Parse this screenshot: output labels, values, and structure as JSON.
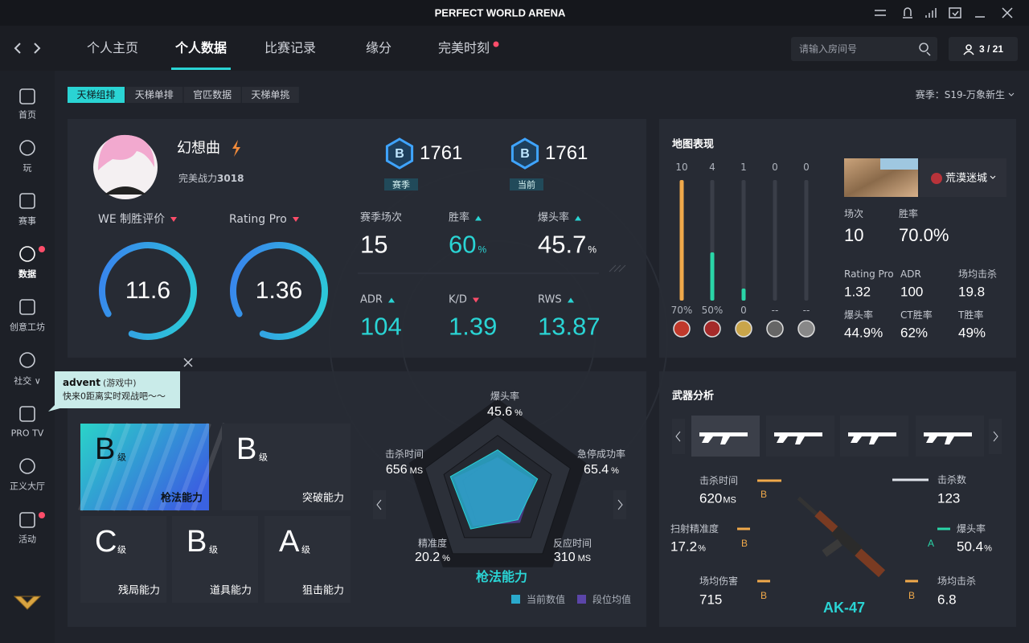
{
  "window": {
    "title": "PERFECT WORLD ARENA"
  },
  "nav": {
    "tabs": [
      "个人主页",
      "个人数据",
      "比赛记录",
      "缘分",
      "完美时刻"
    ],
    "active": 1,
    "dot_tab": 4,
    "search_placeholder": "请输入房间号",
    "party": "3 / 21"
  },
  "sidebar": {
    "items": [
      "首页",
      "玩",
      "赛事",
      "数据",
      "创意工坊",
      "社交 ∨",
      "PRO TV",
      "正义大厅",
      "活动"
    ],
    "active": 3,
    "dots": [
      3,
      8
    ]
  },
  "subtabs": {
    "items": [
      "天梯组排",
      "天梯单排",
      "官匹数据",
      "天梯单挑"
    ],
    "active": 0,
    "season": "赛季：S19-万象新生"
  },
  "profile": {
    "name": "幻想曲",
    "power_label": "完美战力",
    "power": 3018,
    "ranks": [
      {
        "tier": "B",
        "score": 1761,
        "label": "赛季"
      },
      {
        "tier": "B",
        "score": 1761,
        "label": "当前"
      }
    ],
    "gauges": [
      {
        "label": "WE 制胜评价",
        "value": 11.6
      },
      {
        "label": "Rating Pro",
        "value": 1.36
      }
    ],
    "stats": [
      {
        "label": "赛季场次",
        "value": 15,
        "trend": "none",
        "highlight": false
      },
      {
        "label": "胜率",
        "value": 60,
        "unit": "%",
        "trend": "up",
        "highlight": true
      },
      {
        "label": "爆头率",
        "value": 45.7,
        "unit": "%",
        "trend": "up",
        "highlight": false
      },
      {
        "label": "ADR",
        "value": 104,
        "trend": "up",
        "highlight": true
      },
      {
        "label": "K/D",
        "value": 1.39,
        "trend": "down",
        "highlight": true
      },
      {
        "label": "RWS",
        "value": 13.87,
        "trend": "up",
        "highlight": true
      }
    ]
  },
  "map": {
    "title": "地图表现",
    "bars": [
      {
        "games": 10,
        "rate": "70%",
        "color": "#f0a94a"
      },
      {
        "games": 4,
        "rate": "50%",
        "color": "#2ad6a8"
      },
      {
        "games": 1,
        "rate": "0",
        "color": "#2ad6a8"
      },
      {
        "games": 0,
        "rate": "--",
        "color": "#2ad6a8"
      },
      {
        "games": 0,
        "rate": "--",
        "color": "#2ad6a8"
      }
    ],
    "selected": "荒漠迷城",
    "stats": [
      {
        "label": "场次",
        "value": "10"
      },
      {
        "label": "胜率",
        "value": "70.0%"
      },
      {
        "label": "Rating Pro",
        "value": "1.32"
      },
      {
        "label": "ADR",
        "value": "100"
      },
      {
        "label": "场均击杀",
        "value": "19.8"
      },
      {
        "label": "爆头率",
        "value": "44.9%"
      },
      {
        "label": "CT胜率",
        "value": "62%"
      },
      {
        "label": "T胜率",
        "value": "49%"
      }
    ]
  },
  "toast": {
    "name": "advent",
    "status": "(游戏中)",
    "message": "快来0距离实时观战吧～～"
  },
  "abilities": [
    {
      "grade": "B",
      "suffix": "级",
      "label": "枪法能力"
    },
    {
      "grade": "B",
      "suffix": "级",
      "label": "突破能力"
    },
    {
      "grade": "C",
      "suffix": "级",
      "label": "残局能力"
    },
    {
      "grade": "B",
      "suffix": "级",
      "label": "道具能力"
    },
    {
      "grade": "A",
      "suffix": "级",
      "label": "狙击能力"
    }
  ],
  "radar": {
    "title": "枪法能力",
    "axes": [
      {
        "label": "爆头率",
        "value": 45.6,
        "unit": "%"
      },
      {
        "label": "急停成功率",
        "value": 65.4,
        "unit": "%"
      },
      {
        "label": "反应时间",
        "value": 310,
        "unit": "MS"
      },
      {
        "label": "精准度",
        "value": 20.2,
        "unit": "%"
      },
      {
        "label": "击杀时间",
        "value": 656,
        "unit": "MS"
      }
    ],
    "legend": [
      {
        "name": "当前数值",
        "color": "#2aa9cc"
      },
      {
        "name": "段位均值",
        "color": "#5b45a8"
      }
    ]
  },
  "weapons": {
    "title": "武器分析",
    "name": "AK-47",
    "stats": [
      {
        "label": "击杀时间",
        "value": "620",
        "unit": "MS",
        "grade": "B"
      },
      {
        "label": "扫射精准度",
        "value": "17.2",
        "unit": "%",
        "grade": "B"
      },
      {
        "label": "场均伤害",
        "value": "715",
        "grade": "B"
      },
      {
        "label": "击杀数",
        "value": "123"
      },
      {
        "label": "爆头率",
        "value": "50.4",
        "unit": "%",
        "grade": "A"
      },
      {
        "label": "场均击杀",
        "value": "6.8",
        "grade": "B"
      }
    ]
  }
}
